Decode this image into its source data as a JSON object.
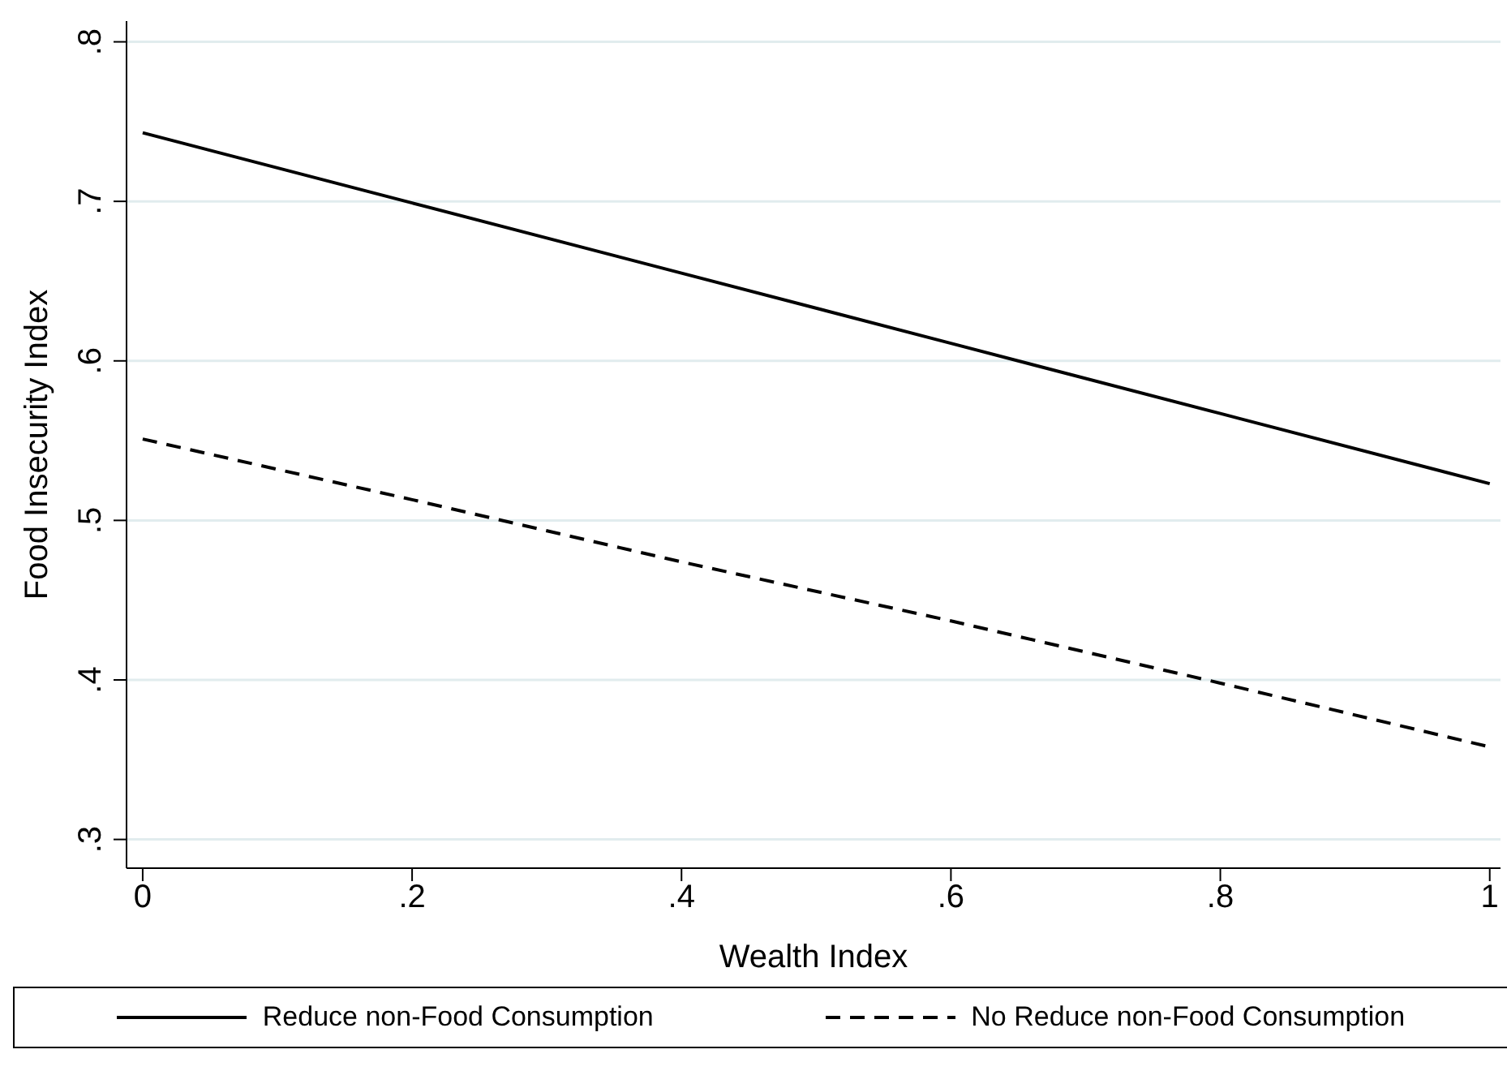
{
  "chart_data": {
    "type": "line",
    "xlabel": "Wealth Index",
    "ylabel": "Food Insecurity Index",
    "x": [
      0,
      0.2,
      0.4,
      0.6,
      0.8,
      1
    ],
    "series": [
      {
        "name": "Reduce non-Food Consumption",
        "color": "#000000",
        "line_style": "solid",
        "values": [
          0.743,
          0.699,
          0.655,
          0.611,
          0.567,
          0.523
        ]
      },
      {
        "name": "No Reduce non-Food Consumption",
        "color": "#000000",
        "line_style": "dashed",
        "values": [
          0.551,
          0.513,
          0.474,
          0.437,
          0.398,
          0.358
        ]
      }
    ],
    "xlim": [
      -0.012,
      1.008
    ],
    "xticks": [
      0,
      {
        "value": 0.2,
        "label": ".2"
      },
      {
        "value": 0.4,
        "label": ".4"
      },
      {
        "value": 0.6,
        "label": ".6"
      },
      {
        "value": 0.8,
        "label": ".8"
      },
      1
    ],
    "ylim": [
      0.282,
      0.813
    ],
    "yticks": [
      {
        "value": 0.3,
        "label": ".3"
      },
      {
        "value": 0.4,
        "label": ".4"
      },
      {
        "value": 0.5,
        "label": ".5"
      },
      {
        "value": 0.6,
        "label": ".6"
      },
      {
        "value": 0.7,
        "label": ".7"
      },
      {
        "value": 0.8,
        "label": ".8"
      }
    ],
    "grid": "y",
    "legend": "bottom",
    "marker": "none"
  }
}
